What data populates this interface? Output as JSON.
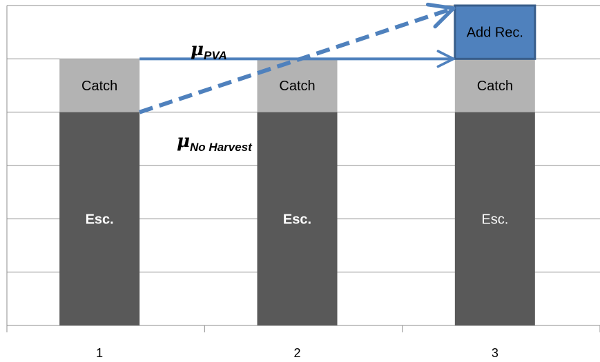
{
  "chart_data": {
    "type": "bar",
    "stacked": true,
    "categories": [
      "1",
      "2",
      "3"
    ],
    "series": [
      {
        "name": "Esc.",
        "values": [
          4,
          4,
          4
        ],
        "color": "#595959",
        "label_color": "#ffffff"
      },
      {
        "name": "Catch",
        "values": [
          1,
          1,
          1
        ],
        "color": "#b3b3b3",
        "label_color": "#000000"
      },
      {
        "name": "Add Rec.",
        "values": [
          0,
          0,
          1
        ],
        "color": "#4f81bd",
        "label_color": "#000000",
        "border": "#385d8a"
      }
    ],
    "segment_labels": [
      [
        "Esc.",
        "Catch",
        ""
      ],
      [
        "Esc.",
        "Catch",
        ""
      ],
      [
        "Esc.",
        "Catch",
        "Add Rec."
      ]
    ],
    "segment_label_bold": [
      [
        true,
        false,
        false
      ],
      [
        true,
        false,
        false
      ],
      [
        false,
        false,
        false
      ]
    ],
    "ylim": [
      0,
      6
    ],
    "grid": true,
    "title": "",
    "xlabel": "",
    "ylabel": "",
    "arrows": [
      {
        "name": "mu-pva-arrow",
        "from": {
          "category": 1,
          "y": 5
        },
        "to": {
          "category": 3,
          "y": 5
        },
        "style": "solid",
        "color": "#4f81bd"
      },
      {
        "name": "mu-no-harvest-arrow",
        "from": {
          "category": 1,
          "y": 4
        },
        "to": {
          "category": 3,
          "y": 6
        },
        "style": "dashed",
        "color": "#4f81bd"
      }
    ],
    "annotations": [
      {
        "name": "mu-pva-label",
        "symbol": "μ",
        "subscript": "PVA"
      },
      {
        "name": "mu-no-harvest-label",
        "symbol": "μ",
        "subscript": "No Harvest"
      }
    ]
  }
}
